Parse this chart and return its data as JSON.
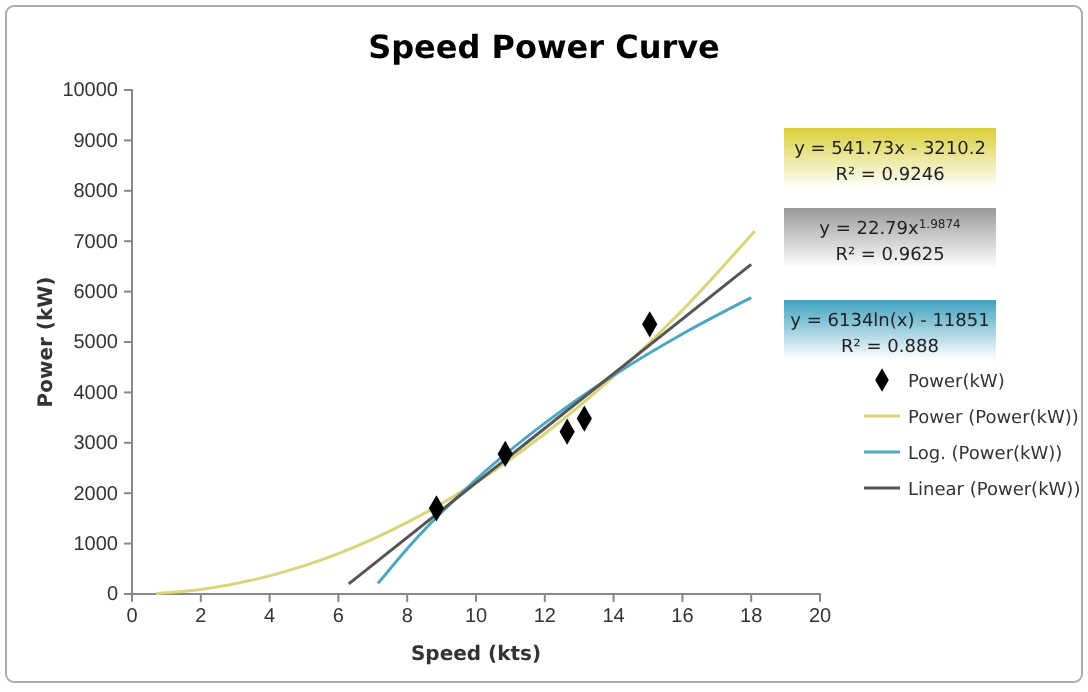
{
  "chart_data": {
    "type": "scatter",
    "title": "Speed Power Curve",
    "xlabel": "Speed (kts)",
    "ylabel": "Power (kW)",
    "xlim": [
      0,
      20
    ],
    "xticks": [
      0,
      2,
      4,
      6,
      8,
      10,
      12,
      14,
      16,
      18,
      20
    ],
    "ylim": [
      0,
      10000
    ],
    "yticks": [
      0,
      1000,
      2000,
      3000,
      4000,
      5000,
      6000,
      7000,
      8000,
      9000,
      10000
    ],
    "grid": false,
    "legend": "right",
    "annotations": [
      "y = 541.73x - 3210.2\nR² = 0.9246",
      "y = 22.79x$^{1.9874}$\nR² = 0.9625",
      "y = 6134ln(x) - 11851\nR² = 0.888"
    ],
    "series": [
      {
        "name": "Power(kW)",
        "marker": "diamond",
        "color": "#000000",
        "x": [
          8.85,
          10.85,
          12.65,
          13.15,
          15.05
        ],
        "values": [
          1700,
          2780,
          3220,
          3480,
          5350
        ]
      },
      {
        "name": "Power (Power(kW))",
        "type": "line",
        "marker": "none",
        "color": "#d9d47a",
        "x": [
          0.7,
          2,
          4,
          6,
          8,
          10,
          12,
          14,
          16,
          18.1
        ],
        "values": [
          10,
          90,
          360,
          800,
          1420,
          2210,
          3180,
          4320,
          5630,
          7200
        ]
      },
      {
        "name": "Log. (Power(kW))",
        "type": "line",
        "marker": "none",
        "color": "#4ea6c4",
        "x": [
          7.15,
          8,
          10,
          12,
          14,
          16,
          18
        ],
        "values": [
          210,
          900,
          2270,
          3390,
          4340,
          5160,
          5880
        ]
      },
      {
        "name": "Linear (Power(kW))",
        "type": "line",
        "marker": "none",
        "color": "#555555",
        "x": [
          6.3,
          18
        ],
        "values": [
          200,
          6540
        ]
      }
    ]
  }
}
